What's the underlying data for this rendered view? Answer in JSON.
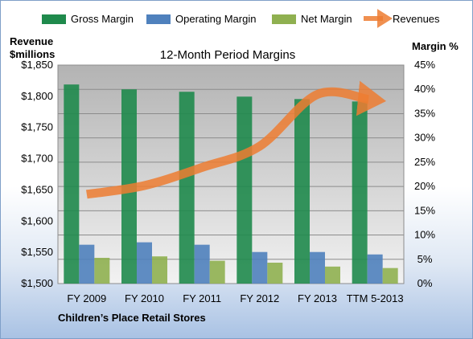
{
  "chart_data": {
    "type": "bar",
    "title": "12-Month Period Margins",
    "subtitle": "Children’s Place Retail Stores",
    "categories": [
      "FY 2009",
      "FY 2010",
      "FY 2011",
      "FY 2012",
      "FY 2013",
      "TTM 5-2013"
    ],
    "left_axis": {
      "label_line1": "Revenue",
      "label_line2": "$millions",
      "ylim": [
        1500,
        1850
      ],
      "ticks": [
        "$1,500",
        "$1,550",
        "$1,600",
        "$1,650",
        "$1,700",
        "$1,750",
        "$1,800",
        "$1,850"
      ]
    },
    "right_axis": {
      "label": "Margin %",
      "ylim": [
        0,
        45
      ],
      "ticks": [
        "0%",
        "5%",
        "10%",
        "15%",
        "20%",
        "25%",
        "30%",
        "35%",
        "40%",
        "45%"
      ]
    },
    "series": [
      {
        "name": "Gross Margin",
        "axis": "right",
        "kind": "bar",
        "color": "#1f8a4c",
        "values": [
          41.0,
          40.0,
          39.5,
          38.5,
          38.0,
          37.5
        ]
      },
      {
        "name": "Operating Margin",
        "axis": "right",
        "kind": "bar",
        "color": "#4f81bd",
        "values": [
          8.0,
          8.5,
          8.0,
          6.5,
          6.5,
          6.0
        ]
      },
      {
        "name": "Net Margin",
        "axis": "right",
        "kind": "bar",
        "color": "#8fb050",
        "values": [
          5.3,
          5.6,
          4.7,
          4.3,
          3.5,
          3.2
        ]
      },
      {
        "name": "Revenues",
        "axis": "left",
        "kind": "line",
        "color": "#ed7d31",
        "values": [
          1643,
          1657,
          1686,
          1720,
          1803,
          1795
        ]
      }
    ],
    "legend_position": "top",
    "grid": true
  }
}
